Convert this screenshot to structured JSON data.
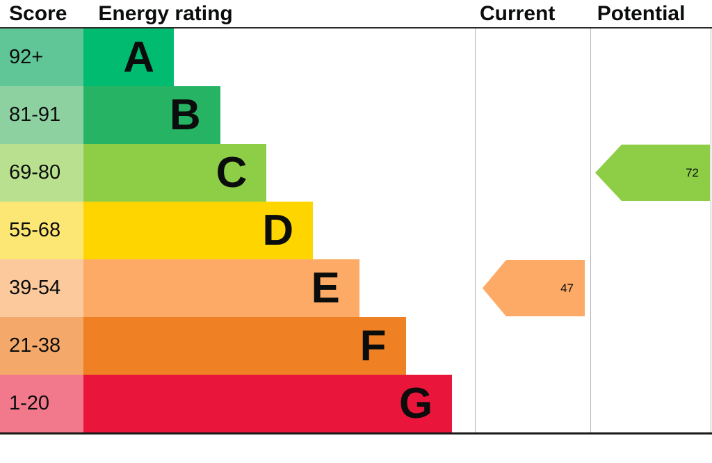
{
  "header": {
    "score": "Score",
    "energy_rating": "Energy rating",
    "current": "Current",
    "potential": "Potential"
  },
  "bands": [
    {
      "letter": "A",
      "score": "92+",
      "bar_color": "#00bb70",
      "score_color": "#60c698"
    },
    {
      "letter": "B",
      "score": "81-91",
      "bar_color": "#27b364",
      "score_color": "#8ed1a0"
    },
    {
      "letter": "C",
      "score": "69-80",
      "bar_color": "#8dce46",
      "score_color": "#b9e08e"
    },
    {
      "letter": "D",
      "score": "55-68",
      "bar_color": "#ffd500",
      "score_color": "#fde774"
    },
    {
      "letter": "E",
      "score": "39-54",
      "bar_color": "#fcaa65",
      "score_color": "#fcc99c"
    },
    {
      "letter": "F",
      "score": "21-38",
      "bar_color": "#ef8023",
      "score_color": "#f4a96a"
    },
    {
      "letter": "G",
      "score": "1-20",
      "bar_color": "#e9153b",
      "score_color": "#f2798b"
    }
  ],
  "current": {
    "value": "47",
    "band": "E",
    "color": "#fcaa65"
  },
  "potential": {
    "value": "72",
    "band": "C",
    "color": "#8dce46"
  },
  "chart_data": {
    "type": "bar",
    "title": "Energy rating",
    "columns": [
      "Score",
      "Energy rating",
      "Current",
      "Potential"
    ],
    "categories": [
      "A",
      "B",
      "C",
      "D",
      "E",
      "F",
      "G"
    ],
    "score_ranges": [
      "92+",
      "81-91",
      "69-80",
      "55-68",
      "39-54",
      "21-38",
      "1-20"
    ],
    "band_colors": [
      "#00bb70",
      "#27b364",
      "#8dce46",
      "#ffd500",
      "#fcaa65",
      "#ef8023",
      "#e9153b"
    ],
    "current_rating": {
      "value": 47,
      "band": "E"
    },
    "potential_rating": {
      "value": 72,
      "band": "C"
    },
    "ylim": [
      1,
      100
    ],
    "legend": "off",
    "grid": "off"
  }
}
